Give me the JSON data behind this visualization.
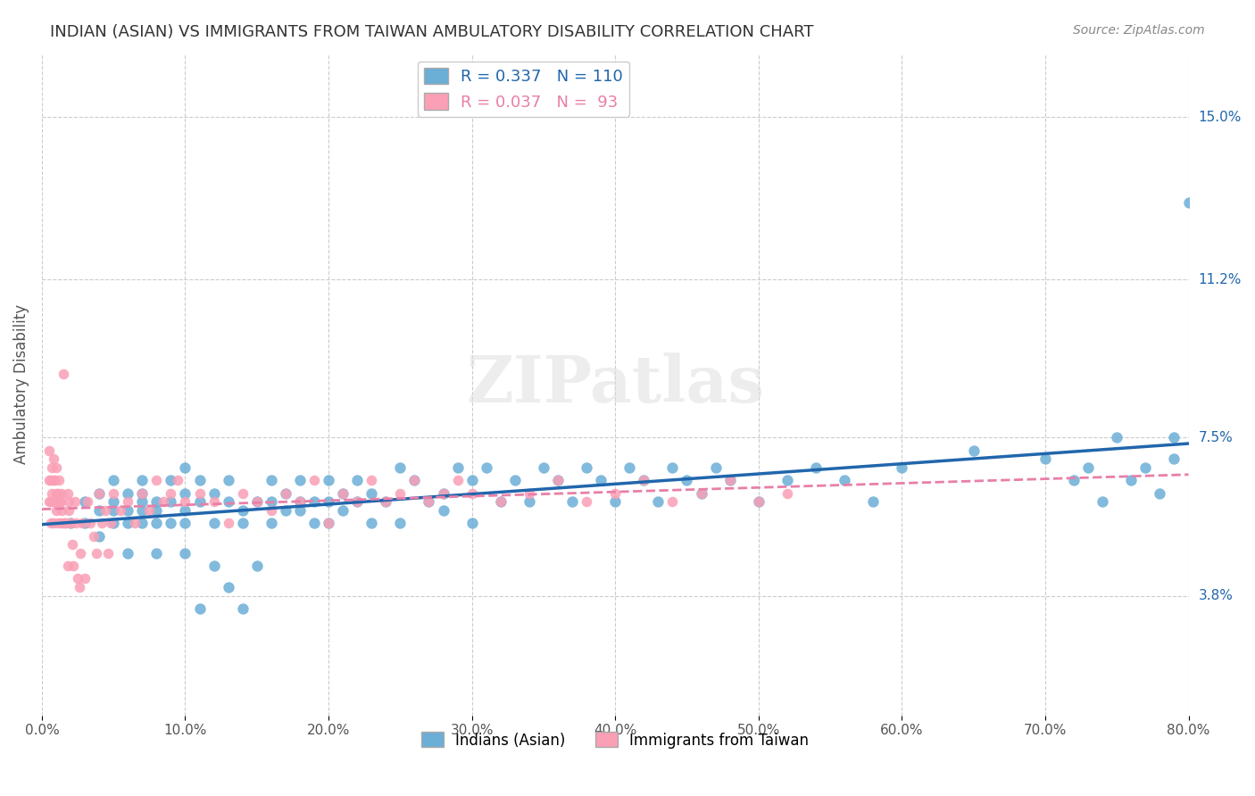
{
  "title": "INDIAN (ASIAN) VS IMMIGRANTS FROM TAIWAN AMBULATORY DISABILITY CORRELATION CHART",
  "source": "Source: ZipAtlas.com",
  "ylabel": "Ambulatory Disability",
  "xlabel_ticks": [
    "0.0%",
    "80.0%"
  ],
  "ytick_labels": [
    "3.8%",
    "7.5%",
    "11.2%",
    "15.0%"
  ],
  "ytick_values": [
    0.038,
    0.075,
    0.112,
    0.15
  ],
  "xmin": 0.0,
  "xmax": 0.8,
  "ymin": 0.01,
  "ymax": 0.165,
  "legend1_r": "0.337",
  "legend1_n": "110",
  "legend2_r": "0.037",
  "legend2_n": "93",
  "color_blue": "#6baed6",
  "color_pink": "#fa9fb5",
  "color_blue_line": "#2166ac",
  "color_pink_line": "#fa9fb5",
  "watermark": "ZIPatlas",
  "indian_asian_x": [
    0.02,
    0.03,
    0.03,
    0.04,
    0.04,
    0.04,
    0.05,
    0.05,
    0.05,
    0.05,
    0.06,
    0.06,
    0.06,
    0.06,
    0.07,
    0.07,
    0.07,
    0.07,
    0.07,
    0.08,
    0.08,
    0.08,
    0.08,
    0.09,
    0.09,
    0.09,
    0.1,
    0.1,
    0.1,
    0.1,
    0.1,
    0.11,
    0.11,
    0.11,
    0.12,
    0.12,
    0.12,
    0.13,
    0.13,
    0.13,
    0.14,
    0.14,
    0.14,
    0.15,
    0.15,
    0.16,
    0.16,
    0.16,
    0.17,
    0.17,
    0.18,
    0.18,
    0.18,
    0.19,
    0.19,
    0.2,
    0.2,
    0.2,
    0.21,
    0.21,
    0.22,
    0.22,
    0.23,
    0.23,
    0.24,
    0.25,
    0.25,
    0.26,
    0.27,
    0.28,
    0.28,
    0.29,
    0.3,
    0.3,
    0.31,
    0.32,
    0.33,
    0.34,
    0.35,
    0.36,
    0.37,
    0.38,
    0.39,
    0.4,
    0.41,
    0.42,
    0.43,
    0.44,
    0.45,
    0.46,
    0.47,
    0.48,
    0.5,
    0.52,
    0.54,
    0.56,
    0.58,
    0.6,
    0.65,
    0.7,
    0.72,
    0.73,
    0.74,
    0.75,
    0.76,
    0.77,
    0.78,
    0.79,
    0.79,
    0.8
  ],
  "indian_asian_y": [
    0.055,
    0.06,
    0.055,
    0.058,
    0.062,
    0.052,
    0.06,
    0.055,
    0.058,
    0.065,
    0.058,
    0.055,
    0.062,
    0.048,
    0.06,
    0.065,
    0.055,
    0.058,
    0.062,
    0.055,
    0.06,
    0.058,
    0.048,
    0.065,
    0.06,
    0.055,
    0.068,
    0.058,
    0.062,
    0.055,
    0.048,
    0.065,
    0.06,
    0.035,
    0.055,
    0.062,
    0.045,
    0.065,
    0.06,
    0.04,
    0.058,
    0.055,
    0.035,
    0.06,
    0.045,
    0.065,
    0.06,
    0.055,
    0.062,
    0.058,
    0.06,
    0.058,
    0.065,
    0.06,
    0.055,
    0.065,
    0.06,
    0.055,
    0.062,
    0.058,
    0.065,
    0.06,
    0.055,
    0.062,
    0.06,
    0.068,
    0.055,
    0.065,
    0.06,
    0.062,
    0.058,
    0.068,
    0.065,
    0.055,
    0.068,
    0.06,
    0.065,
    0.06,
    0.068,
    0.065,
    0.06,
    0.068,
    0.065,
    0.06,
    0.068,
    0.065,
    0.06,
    0.068,
    0.065,
    0.062,
    0.068,
    0.065,
    0.06,
    0.065,
    0.068,
    0.065,
    0.06,
    0.068,
    0.072,
    0.07,
    0.065,
    0.068,
    0.06,
    0.075,
    0.065,
    0.068,
    0.062,
    0.075,
    0.07,
    0.13
  ],
  "taiwan_x": [
    0.005,
    0.005,
    0.005,
    0.006,
    0.006,
    0.006,
    0.007,
    0.007,
    0.008,
    0.008,
    0.008,
    0.009,
    0.009,
    0.01,
    0.01,
    0.01,
    0.011,
    0.011,
    0.012,
    0.012,
    0.013,
    0.013,
    0.014,
    0.014,
    0.015,
    0.015,
    0.016,
    0.017,
    0.018,
    0.018,
    0.019,
    0.019,
    0.02,
    0.021,
    0.022,
    0.023,
    0.024,
    0.025,
    0.026,
    0.027,
    0.028,
    0.03,
    0.032,
    0.034,
    0.036,
    0.038,
    0.04,
    0.042,
    0.044,
    0.046,
    0.048,
    0.05,
    0.055,
    0.06,
    0.065,
    0.07,
    0.075,
    0.08,
    0.085,
    0.09,
    0.095,
    0.1,
    0.11,
    0.12,
    0.13,
    0.14,
    0.15,
    0.16,
    0.17,
    0.18,
    0.19,
    0.2,
    0.21,
    0.22,
    0.23,
    0.24,
    0.25,
    0.26,
    0.27,
    0.28,
    0.29,
    0.3,
    0.32,
    0.34,
    0.36,
    0.38,
    0.4,
    0.42,
    0.44,
    0.46,
    0.48,
    0.5,
    0.52
  ],
  "taiwan_y": [
    0.06,
    0.065,
    0.072,
    0.06,
    0.065,
    0.055,
    0.062,
    0.068,
    0.055,
    0.065,
    0.07,
    0.06,
    0.065,
    0.062,
    0.058,
    0.068,
    0.055,
    0.062,
    0.06,
    0.065,
    0.055,
    0.06,
    0.062,
    0.058,
    0.055,
    0.09,
    0.055,
    0.055,
    0.062,
    0.045,
    0.058,
    0.06,
    0.055,
    0.05,
    0.045,
    0.06,
    0.055,
    0.042,
    0.04,
    0.048,
    0.055,
    0.042,
    0.06,
    0.055,
    0.052,
    0.048,
    0.062,
    0.055,
    0.058,
    0.048,
    0.055,
    0.062,
    0.058,
    0.06,
    0.055,
    0.062,
    0.058,
    0.065,
    0.06,
    0.062,
    0.065,
    0.06,
    0.062,
    0.06,
    0.055,
    0.062,
    0.06,
    0.058,
    0.062,
    0.06,
    0.065,
    0.055,
    0.062,
    0.06,
    0.065,
    0.06,
    0.062,
    0.065,
    0.06,
    0.062,
    0.065,
    0.062,
    0.06,
    0.062,
    0.065,
    0.06,
    0.062,
    0.065,
    0.06,
    0.062,
    0.065,
    0.06,
    0.062
  ]
}
